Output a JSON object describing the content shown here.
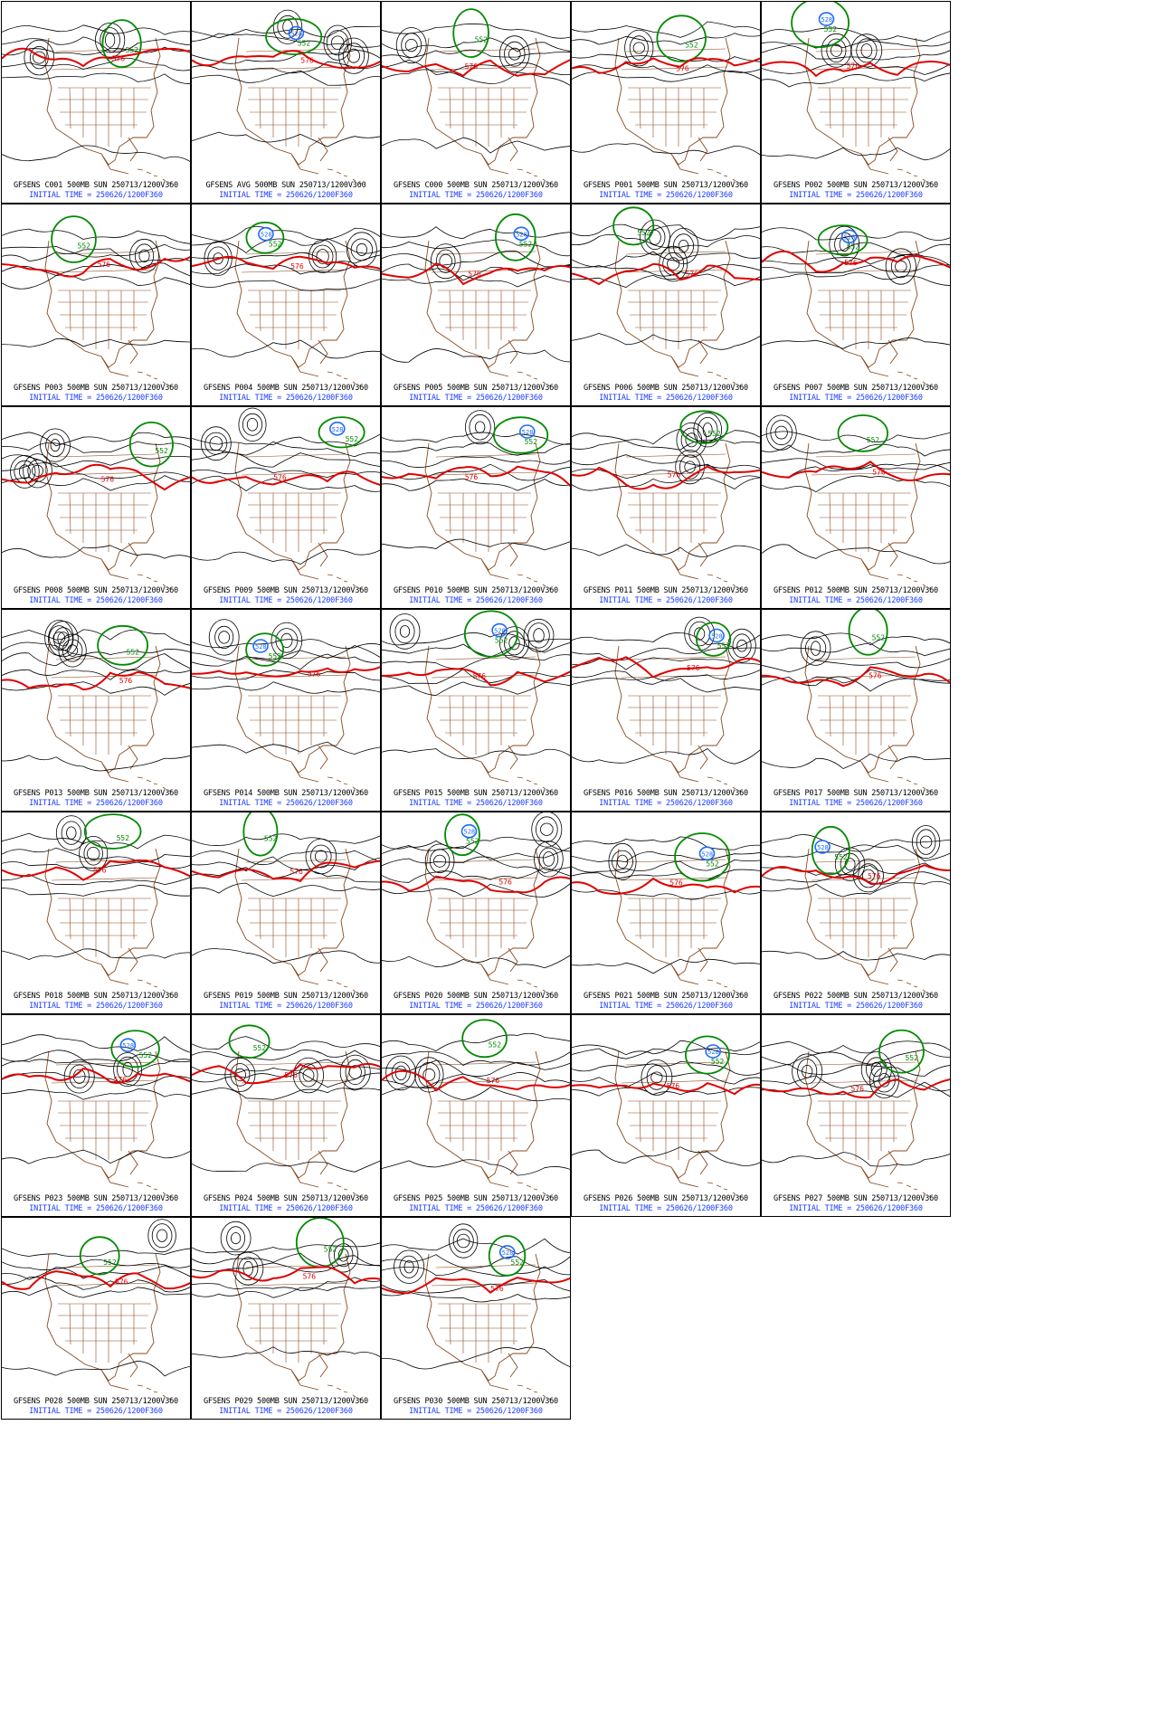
{
  "colors": {
    "map_lines": "#8a4a20",
    "contour_black": "#000000",
    "contour_576": "#e00000",
    "contour_552": "#008a00",
    "contour_528": "#1e6bff",
    "initial_time": "#1a3cff"
  },
  "contour_labels": {
    "red": "576",
    "green": "552",
    "blue": "528"
  },
  "panels": [
    {
      "title": "GFSENS C001 500MB SUN 250713/1200V360",
      "initial": "INITIAL TIME = 250626/1200F360"
    },
    {
      "title": "GFSENS AVG 500MB SUN 250713/1200V360",
      "initial": "INITIAL TIME = 250626/1200F360"
    },
    {
      "title": "GFSENS C000 500MB SUN 250713/1200V360",
      "initial": "INITIAL TIME = 250626/1200F360"
    },
    {
      "title": "GFSENS P001 500MB SUN 250713/1200V360",
      "initial": "INITIAL TIME = 250626/1200F360"
    },
    {
      "title": "GFSENS P002 500MB SUN 250713/1200V360",
      "initial": "INITIAL TIME = 250626/1200F360"
    },
    {
      "title": "GFSENS P003 500MB SUN 250713/1200V360",
      "initial": "INITIAL TIME = 250626/1200F360"
    },
    {
      "title": "GFSENS P004 500MB SUN 250713/1200V360",
      "initial": "INITIAL TIME = 250626/1200F360"
    },
    {
      "title": "GFSENS P005 500MB SUN 250713/1200V360",
      "initial": "INITIAL TIME = 250626/1200F360"
    },
    {
      "title": "GFSENS P006 500MB SUN 250713/1200V360",
      "initial": "INITIAL TIME = 250626/1200F360"
    },
    {
      "title": "GFSENS P007 500MB SUN 250713/1200V360",
      "initial": "INITIAL TIME = 250626/1200F360"
    },
    {
      "title": "GFSENS P008 500MB SUN 250713/1200V360",
      "initial": "INITIAL TIME = 250626/1200F360"
    },
    {
      "title": "GFSENS P009 500MB SUN 250713/1200V360",
      "initial": "INITIAL TIME = 250626/1200F360"
    },
    {
      "title": "GFSENS P010 500MB SUN 250713/1200V360",
      "initial": "INITIAL TIME = 250626/1200F360"
    },
    {
      "title": "GFSENS P011 500MB SUN 250713/1200V360",
      "initial": "INITIAL TIME = 250626/1200F360"
    },
    {
      "title": "GFSENS P012 500MB SUN 250713/1200V360",
      "initial": "INITIAL TIME = 250626/1200F360"
    },
    {
      "title": "GFSENS P013 500MB SUN 250713/1200V360",
      "initial": "INITIAL TIME = 250626/1200F360"
    },
    {
      "title": "GFSENS P014 500MB SUN 250713/1200V360",
      "initial": "INITIAL TIME = 250626/1200F360"
    },
    {
      "title": "GFSENS P015 500MB SUN 250713/1200V360",
      "initial": "INITIAL TIME = 250626/1200F360"
    },
    {
      "title": "GFSENS P016 500MB SUN 250713/1200V360",
      "initial": "INITIAL TIME = 250626/1200F360"
    },
    {
      "title": "GFSENS P017 500MB SUN 250713/1200V360",
      "initial": "INITIAL TIME = 250626/1200F360"
    },
    {
      "title": "GFSENS P018 500MB SUN 250713/1200V360",
      "initial": "INITIAL TIME = 250626/1200F360"
    },
    {
      "title": "GFSENS P019 500MB SUN 250713/1200V360",
      "initial": "INITIAL TIME = 250626/1200F360"
    },
    {
      "title": "GFSENS P020 500MB SUN 250713/1200V360",
      "initial": "INITIAL TIME = 250626/1200F360"
    },
    {
      "title": "GFSENS P021 500MB SUN 250713/1200V360",
      "initial": "INITIAL TIME = 250626/1200F360"
    },
    {
      "title": "GFSENS P022 500MB SUN 250713/1200V360",
      "initial": "INITIAL TIME = 250626/1200F360"
    },
    {
      "title": "GFSENS P023 500MB SUN 250713/1200V360",
      "initial": "INITIAL TIME = 250626/1200F360"
    },
    {
      "title": "GFSENS P024 500MB SUN 250713/1200V360",
      "initial": "INITIAL TIME = 250626/1200F360"
    },
    {
      "title": "GFSENS P025 500MB SUN 250713/1200V360",
      "initial": "INITIAL TIME = 250626/1200F360"
    },
    {
      "title": "GFSENS P026 500MB SUN 250713/1200V360",
      "initial": "INITIAL TIME = 250626/1200F360"
    },
    {
      "title": "GFSENS P027 500MB SUN 250713/1200V360",
      "initial": "INITIAL TIME = 250626/1200F360"
    },
    {
      "title": "GFSENS P028 500MB SUN 250713/1200V360",
      "initial": "INITIAL TIME = 250626/1200F360"
    },
    {
      "title": "GFSENS P029 500MB SUN 250713/1200V360",
      "initial": "INITIAL TIME = 250626/1200F360"
    },
    {
      "title": "GFSENS P030 500MB SUN 250713/1200V360",
      "initial": "INITIAL TIME = 250626/1200F360"
    }
  ]
}
